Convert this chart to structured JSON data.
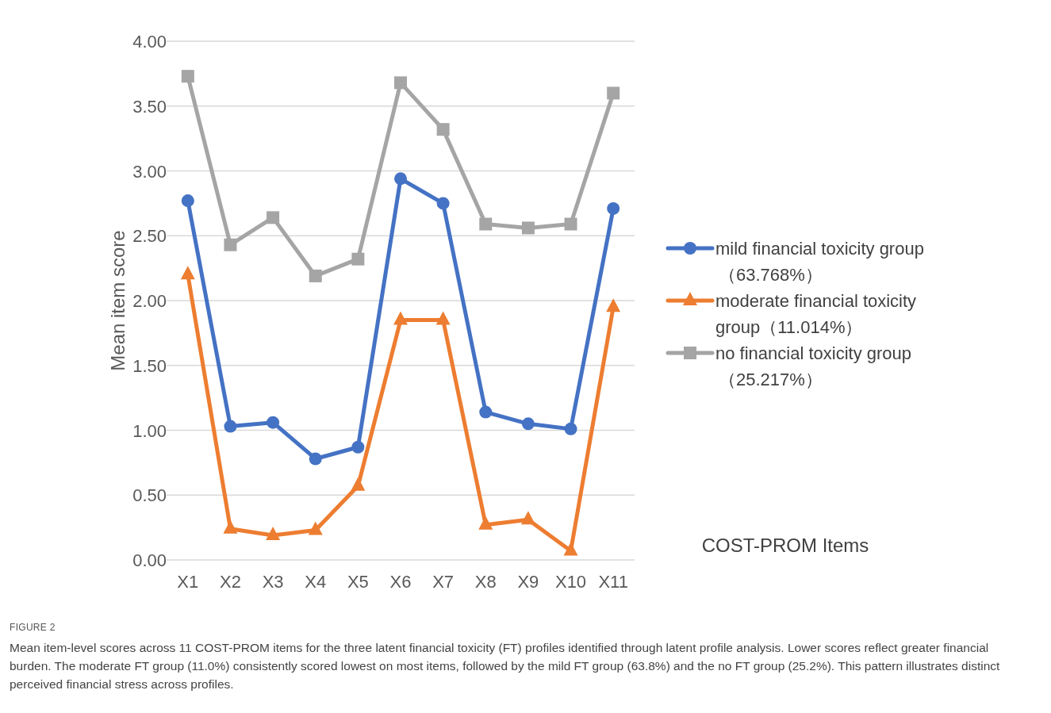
{
  "chart_data": {
    "type": "line",
    "ylabel": "Mean item score",
    "xlabel": "COST-PROM Items",
    "categories": [
      "X1",
      "X2",
      "X3",
      "X4",
      "X5",
      "X6",
      "X7",
      "X8",
      "X9",
      "X10",
      "X11"
    ],
    "series": [
      {
        "name": "mild financial toxicity group（63.768%）",
        "color": "#4472c4",
        "marker": "circle",
        "values": [
          2.77,
          1.03,
          1.06,
          0.78,
          0.87,
          2.94,
          2.75,
          1.14,
          1.05,
          1.01,
          2.71
        ]
      },
      {
        "name": "moderate financial toxicity group（11.014%）",
        "color": "#ed7d31",
        "marker": "triangle",
        "values": [
          2.2,
          0.24,
          0.19,
          0.23,
          0.57,
          1.85,
          1.85,
          0.27,
          0.31,
          0.07,
          1.95
        ]
      },
      {
        "name": "no financial toxicity group（25.217%）",
        "color": "#a5a5a5",
        "marker": "square",
        "values": [
          3.73,
          2.43,
          2.64,
          2.19,
          2.32,
          3.68,
          3.32,
          2.59,
          2.56,
          2.59,
          3.6
        ]
      }
    ],
    "ylim": [
      0,
      4
    ],
    "yticks": [
      {
        "value": 0,
        "label": "0.00"
      },
      {
        "value": 0.5,
        "label": "0.50"
      },
      {
        "value": 1,
        "label": "1.00"
      },
      {
        "value": 1.5,
        "label": "1.50"
      },
      {
        "value": 2,
        "label": "2.00"
      },
      {
        "value": 2.5,
        "label": "2.50"
      },
      {
        "value": 3,
        "label": "3.00"
      },
      {
        "value": 3.5,
        "label": "3.50"
      },
      {
        "value": 4,
        "label": "4.00"
      }
    ],
    "grid": "y",
    "legend": "right",
    "line_style": "solid",
    "annotations": [
      "FIGURE 2",
      "Mean item-level scores across 11 COST-PROM items for the three latent financial toxicity (FT) profiles identified through latent profile analysis. Lower scores reflect greater financial burden. The moderate FT group (11.0%) consistently scored lowest on most items, followed by the mild FT group (63.8%) and the no FT group (25.2%). This pattern illustrates distinct perceived financial stress across profiles."
    ]
  }
}
